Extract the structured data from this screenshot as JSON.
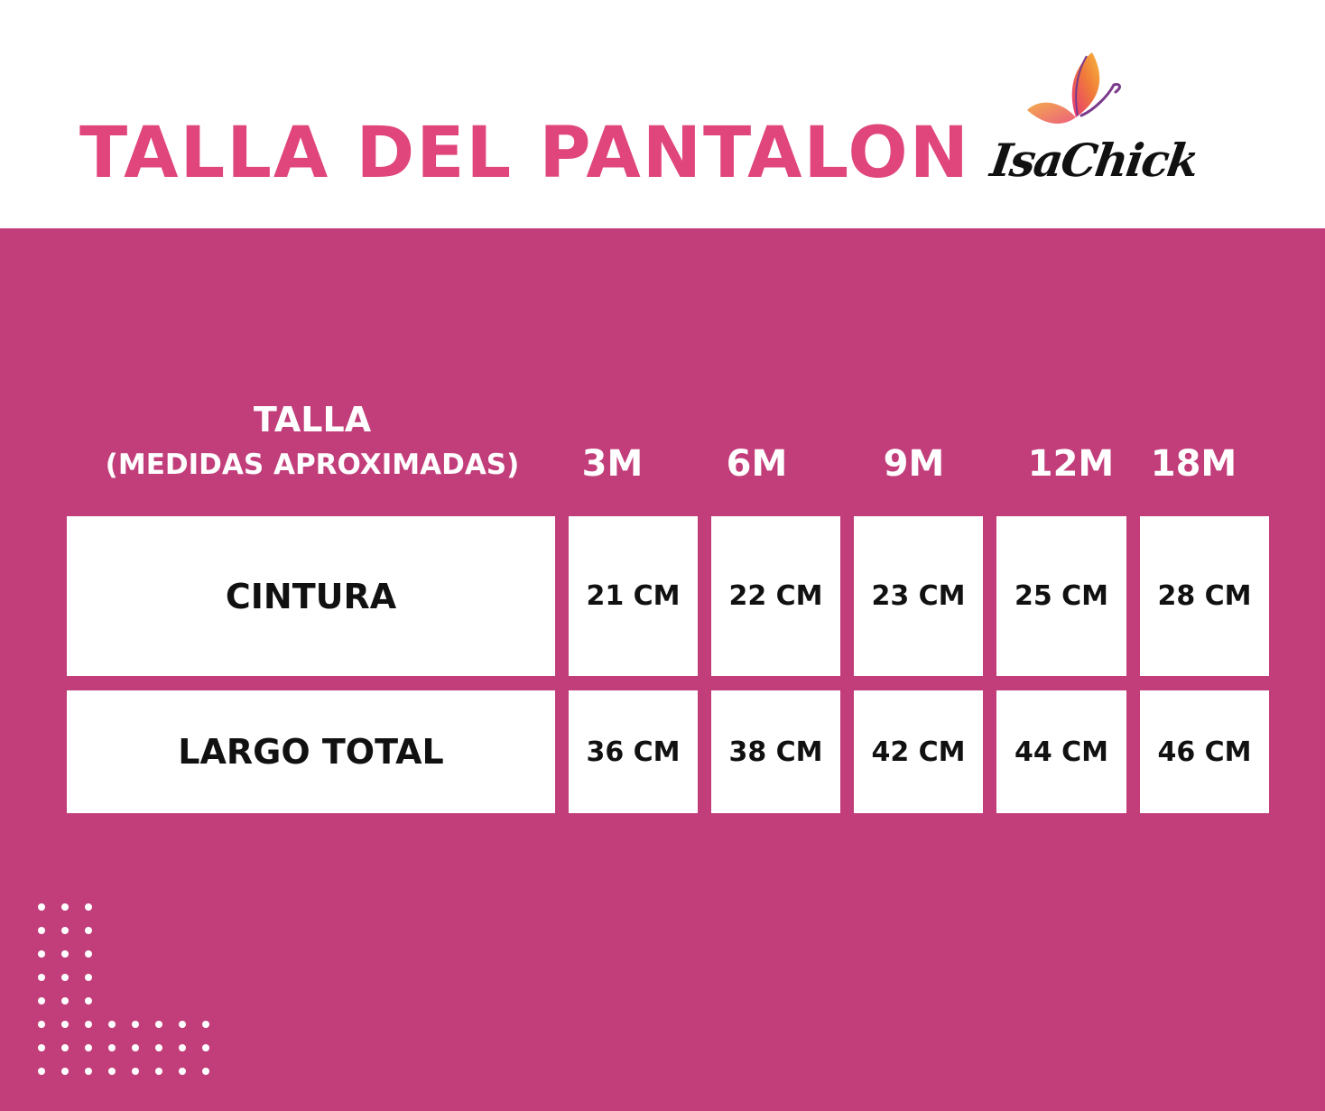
{
  "colors": {
    "brand_pink": "#c23e7b",
    "title_pink": "#e0457b",
    "white": "#ffffff",
    "text_dark": "#111111"
  },
  "header": {
    "title": "TALLA DEL PANTALON",
    "logo_text": "IsaChick",
    "logo_icon": "butterfly-icon"
  },
  "table": {
    "header_title": "TALLA",
    "header_subtitle": "(MEDIDAS APROXIMADAS)",
    "sizes": [
      "3M",
      "6M",
      "9M",
      "12M",
      "18M"
    ],
    "rows": [
      {
        "label": "CINTURA",
        "values": [
          "21 CM",
          "22 CM",
          "23 CM",
          "25 CM",
          "28 CM"
        ]
      },
      {
        "label": "LARGO TOTAL",
        "values": [
          "36 CM",
          "38 CM",
          "42 CM",
          "44 CM",
          "46 CM"
        ]
      }
    ]
  }
}
